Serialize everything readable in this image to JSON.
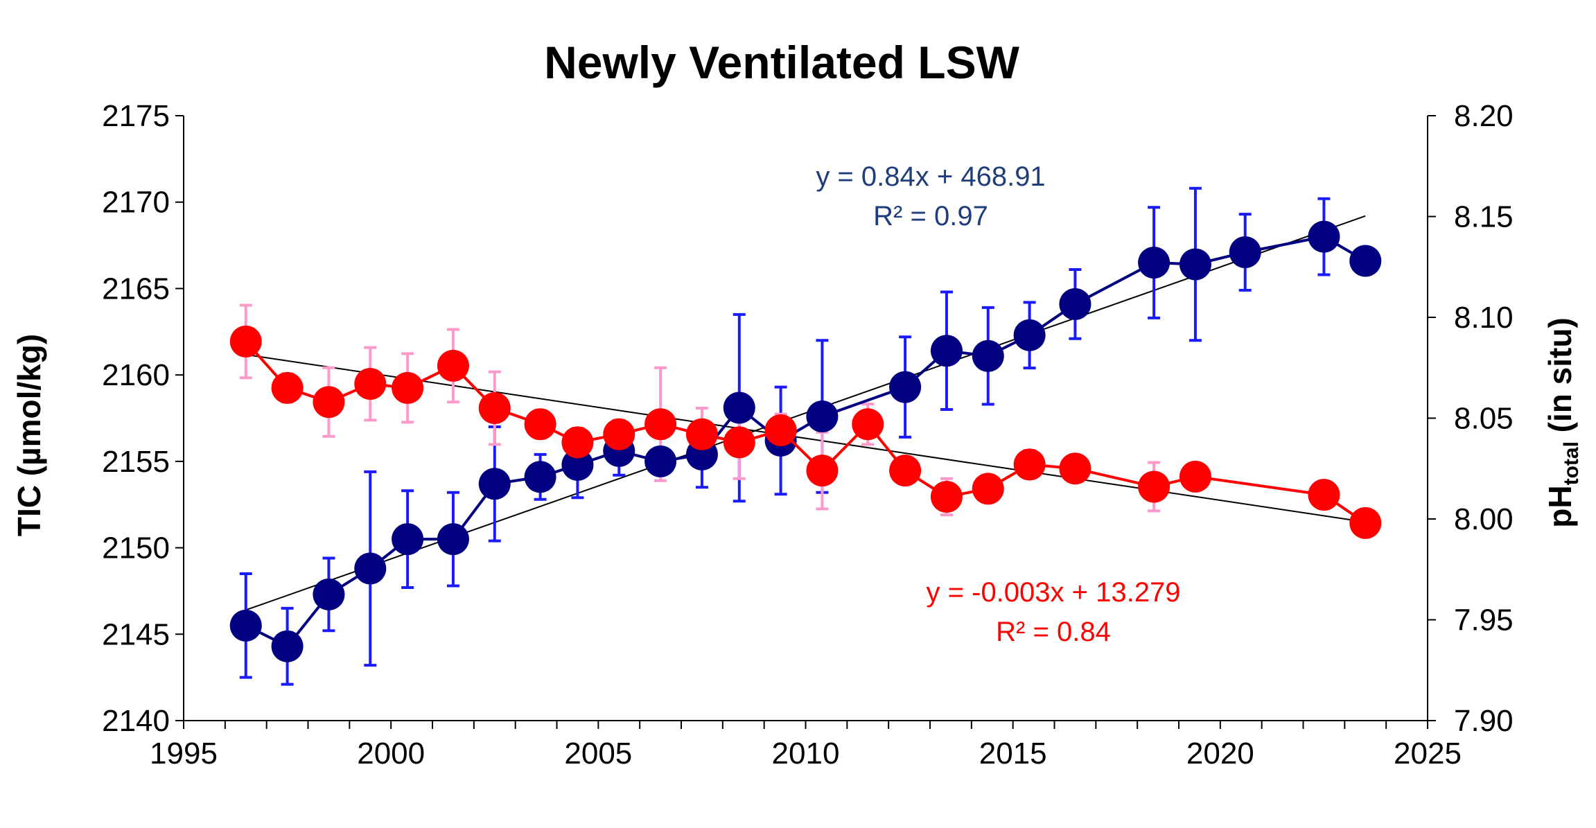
{
  "chart_data": {
    "type": "line",
    "title": "Newly Ventilated LSW",
    "x_ticks": [
      "1995",
      "2000",
      "2005",
      "2010",
      "2015",
      "2020",
      "2025"
    ],
    "xlim": [
      1995,
      2025
    ],
    "y_left": {
      "label": "TIC (µmol/kg)",
      "lim": [
        2140,
        2175
      ],
      "ticks": [
        "2140",
        "2145",
        "2150",
        "2155",
        "2160",
        "2165",
        "2170",
        "2175"
      ]
    },
    "y_right": {
      "label_main": "pH",
      "label_sub": "total",
      "label_tail": " (in situ)",
      "lim": [
        7.9,
        8.2
      ],
      "ticks": [
        "7.90",
        "7.95",
        "8.00",
        "8.05",
        "8.10",
        "8.15",
        "8.20"
      ]
    },
    "series": [
      {
        "axis": "left",
        "marker_color": "#000080",
        "line_color": "#000080",
        "error_color": "#1a1aff",
        "x": [
          1996.5,
          1997.5,
          1998.5,
          1999.5,
          2000.4,
          2001.5,
          2002.5,
          2003.6,
          2004.5,
          2005.5,
          2006.5,
          2007.5,
          2008.4,
          2009.4,
          2010.4,
          2012.4,
          2013.4,
          2014.4,
          2015.4,
          2016.5,
          2018.4,
          2019.4,
          2020.6,
          2022.5,
          2023.5
        ],
        "y": [
          2145.5,
          2144.3,
          2147.3,
          2148.8,
          2150.5,
          2150.5,
          2153.7,
          2154.1,
          2154.8,
          2155.6,
          2155.0,
          2155.4,
          2158.1,
          2156.2,
          2157.6,
          2159.3,
          2161.4,
          2161.1,
          2162.3,
          2164.1,
          2166.5,
          2166.4,
          2167.1,
          2168.0,
          2166.6
        ],
        "err": [
          3.0,
          2.2,
          2.1,
          5.6,
          2.8,
          2.7,
          3.3,
          1.3,
          1.9,
          1.4,
          0.0,
          1.9,
          5.4,
          3.1,
          4.4,
          2.9,
          3.4,
          2.8,
          1.9,
          2.0,
          3.2,
          4.4,
          2.2,
          2.2,
          0.0
        ],
        "trend": {
          "x0": 1996.5,
          "y0": 2146.4,
          "x1": 2023.5,
          "y1": 2169.2
        },
        "equation": "y = 0.84x + 468.91",
        "r2": "R² = 0.97"
      },
      {
        "axis": "right",
        "marker_color": "#ff0000",
        "line_color": "#ff0000",
        "error_color": "#ff99cc",
        "x": [
          1996.5,
          1997.5,
          1998.5,
          1999.5,
          2000.4,
          2001.5,
          2002.5,
          2003.6,
          2004.5,
          2005.5,
          2006.5,
          2007.5,
          2008.4,
          2009.4,
          2010.4,
          2011.5,
          2012.4,
          2013.4,
          2014.4,
          2015.4,
          2016.5,
          2018.4,
          2019.4,
          2022.5,
          2023.5
        ],
        "y": [
          8.088,
          8.065,
          8.058,
          8.067,
          8.065,
          8.076,
          8.055,
          8.047,
          8.038,
          8.042,
          8.047,
          8.042,
          8.038,
          8.044,
          8.024,
          8.047,
          8.024,
          8.011,
          8.015,
          8.027,
          8.025,
          8.016,
          8.021,
          8.012,
          7.998
        ],
        "err": [
          0.018,
          0.007,
          0.017,
          0.018,
          0.017,
          0.018,
          0.018,
          0.007,
          0.007,
          0.007,
          0.028,
          0.013,
          0.018,
          0.008,
          0.019,
          0.01,
          0.005,
          0.009,
          0.0,
          0.007,
          0.0,
          0.012,
          0.0,
          0.0,
          0.0
        ],
        "trend": {
          "x0": 1996.5,
          "y0": 8.0815,
          "x1": 2023.5,
          "y1": 7.9985
        },
        "equation": "y = -0.003x + 13.279",
        "r2": "R² = 0.84"
      }
    ],
    "grid": false,
    "legend": "none"
  }
}
